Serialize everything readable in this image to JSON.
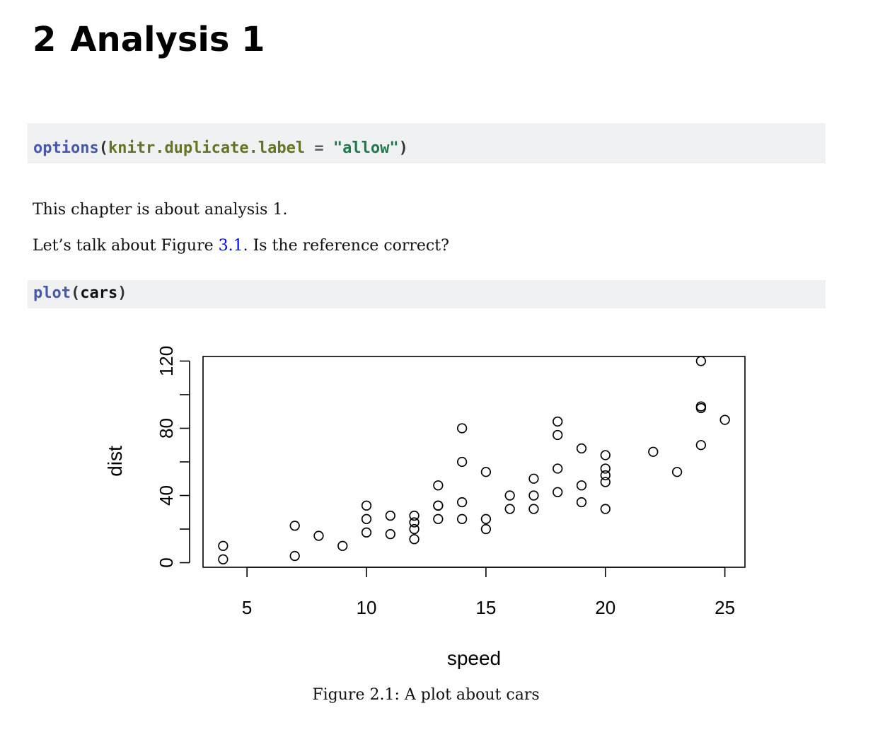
{
  "chapter": {
    "number": "2",
    "title": "Analysis 1"
  },
  "code1": {
    "fn": "options",
    "open": "(",
    "arg": "knitr.duplicate.label",
    "op": " = ",
    "str": "\"allow\"",
    "close": ")"
  },
  "para1": "This chapter is about analysis 1.",
  "para2": {
    "before": "Let’s talk about Figure ",
    "ref": "3.1",
    "after": ". Is the reference correct?"
  },
  "code2": {
    "fn": "plot",
    "open": "(",
    "arg": "cars",
    "close": ")"
  },
  "figure": {
    "caption": "Figure 2.1: A plot about cars"
  },
  "chart_data": {
    "type": "scatter",
    "title": "",
    "xlabel": "speed",
    "ylabel": "dist",
    "x_ticks": [
      5,
      10,
      15,
      20,
      25
    ],
    "y_ticks": [
      0,
      20,
      40,
      60,
      80,
      100,
      120
    ],
    "y_tick_labels": [
      "0",
      "",
      "40",
      "",
      "80",
      "",
      "120"
    ],
    "xlim": [
      3.16,
      25.84
    ],
    "ylim": [
      -2.72,
      122.72
    ],
    "marker": "open-circle",
    "grid": false,
    "x": [
      4,
      4,
      7,
      7,
      8,
      9,
      10,
      10,
      10,
      11,
      11,
      12,
      12,
      12,
      12,
      13,
      13,
      13,
      13,
      14,
      14,
      14,
      14,
      15,
      15,
      15,
      16,
      16,
      17,
      17,
      17,
      18,
      18,
      18,
      18,
      19,
      19,
      19,
      20,
      20,
      20,
      20,
      20,
      22,
      23,
      24,
      24,
      24,
      24,
      25
    ],
    "y": [
      2,
      10,
      4,
      22,
      16,
      10,
      18,
      26,
      34,
      17,
      28,
      14,
      20,
      24,
      28,
      26,
      34,
      34,
      46,
      26,
      36,
      60,
      80,
      20,
      26,
      54,
      32,
      40,
      32,
      40,
      50,
      42,
      56,
      76,
      84,
      36,
      46,
      68,
      32,
      48,
      52,
      56,
      64,
      66,
      54,
      70,
      92,
      93,
      120,
      85
    ]
  }
}
